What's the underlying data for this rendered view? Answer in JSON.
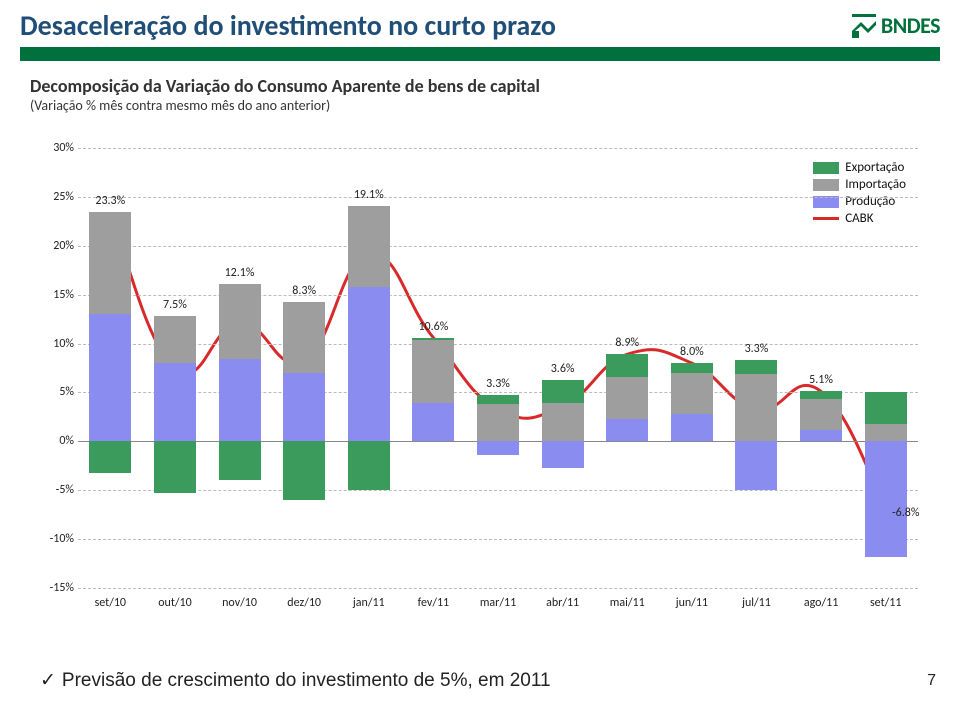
{
  "title": "Desaceleração do investimento no curto prazo",
  "brand": {
    "name": "BNDES",
    "logo_color": "#00703c"
  },
  "subtitle": {
    "line1": "Decomposição da Variação do Consumo Aparente de bens de capital",
    "line2": "(Variação % mês contra mesmo mês do ano anterior)"
  },
  "chart": {
    "y_min": -15,
    "y_max": 30,
    "y_step": 5,
    "y_ticks": [
      30,
      25,
      20,
      15,
      10,
      5,
      0,
      -5,
      -10,
      -15
    ],
    "y_tick_labels": [
      "30%",
      "25%",
      "20%",
      "15%",
      "10%",
      "5%",
      "0%",
      "-5%",
      "-10%",
      "-15%"
    ],
    "categories": [
      "set/10",
      "out/10",
      "nov/10",
      "dez/10",
      "jan/11",
      "fev/11",
      "mar/11",
      "abr/11",
      "mai/11",
      "jun/11",
      "jul/11",
      "ago/11",
      "set/11"
    ],
    "colors": {
      "export": "#3a9b5c",
      "import": "#9e9e9e",
      "prod": "#8a8cf0",
      "cabk": "#d82a2a",
      "grid": "#bbbbbb",
      "bg": "#ffffff"
    },
    "legend": [
      {
        "label": "Exportação",
        "color": "#3a9b5c",
        "type": "box"
      },
      {
        "label": "Importação",
        "color": "#9e9e9e",
        "type": "box"
      },
      {
        "label": "Produção",
        "color": "#8a8cf0",
        "type": "box"
      },
      {
        "label": "CABK",
        "color": "#d82a2a",
        "type": "line"
      }
    ],
    "data_labels": [
      "23.3%",
      "7.5%",
      "12.1%",
      "8.3%",
      "19.1%",
      "10.6%",
      "3.3%",
      "3.6%",
      "8.9%",
      "8.0%",
      "3.3%",
      "5.1%",
      "-6.8%"
    ],
    "series": [
      {
        "exp_pos": 0,
        "exp_neg": -3.2,
        "imp": 10.5,
        "prod": 13.0,
        "cabk": 23.3
      },
      {
        "exp_pos": 0,
        "exp_neg": -5.3,
        "imp": 4.8,
        "prod": 8.0,
        "cabk": 7.5
      },
      {
        "exp_pos": 0,
        "exp_neg": -4.0,
        "imp": 7.7,
        "prod": 8.4,
        "cabk": 12.1
      },
      {
        "exp_pos": 0,
        "exp_neg": -6.0,
        "imp": 7.3,
        "prod": 7.0,
        "cabk": 8.3
      },
      {
        "exp_pos": 0,
        "exp_neg": -5.0,
        "imp": 8.3,
        "prod": 15.8,
        "cabk": 19.1
      },
      {
        "exp_pos": 0.2,
        "exp_neg": 0,
        "imp": 6.5,
        "prod": 3.9,
        "cabk": 10.6
      },
      {
        "exp_pos": 0.9,
        "exp_neg": 0,
        "imp": 3.8,
        "prod": -1.4,
        "cabk": 3.3
      },
      {
        "exp_pos": 2.4,
        "exp_neg": 0,
        "imp": 3.9,
        "prod": -2.7,
        "cabk": 3.6
      },
      {
        "exp_pos": 2.3,
        "exp_neg": 0,
        "imp": 4.3,
        "prod": 2.3,
        "cabk": 8.9
      },
      {
        "exp_pos": 1.0,
        "exp_neg": 0,
        "imp": 4.2,
        "prod": 2.8,
        "cabk": 8.0
      },
      {
        "exp_pos": 1.4,
        "exp_neg": 0,
        "imp": 6.9,
        "prod": -5.0,
        "cabk": 3.3
      },
      {
        "exp_pos": 0.8,
        "exp_neg": 0,
        "imp": 3.1,
        "prod": 1.2,
        "cabk": 5.1
      },
      {
        "exp_pos": 3.2,
        "exp_neg": 0,
        "imp": 1.8,
        "prod": -11.8,
        "cabk": -6.8
      }
    ]
  },
  "footer": "Previsão de crescimento do investimento de 5%, em 2011",
  "page_number": "7"
}
